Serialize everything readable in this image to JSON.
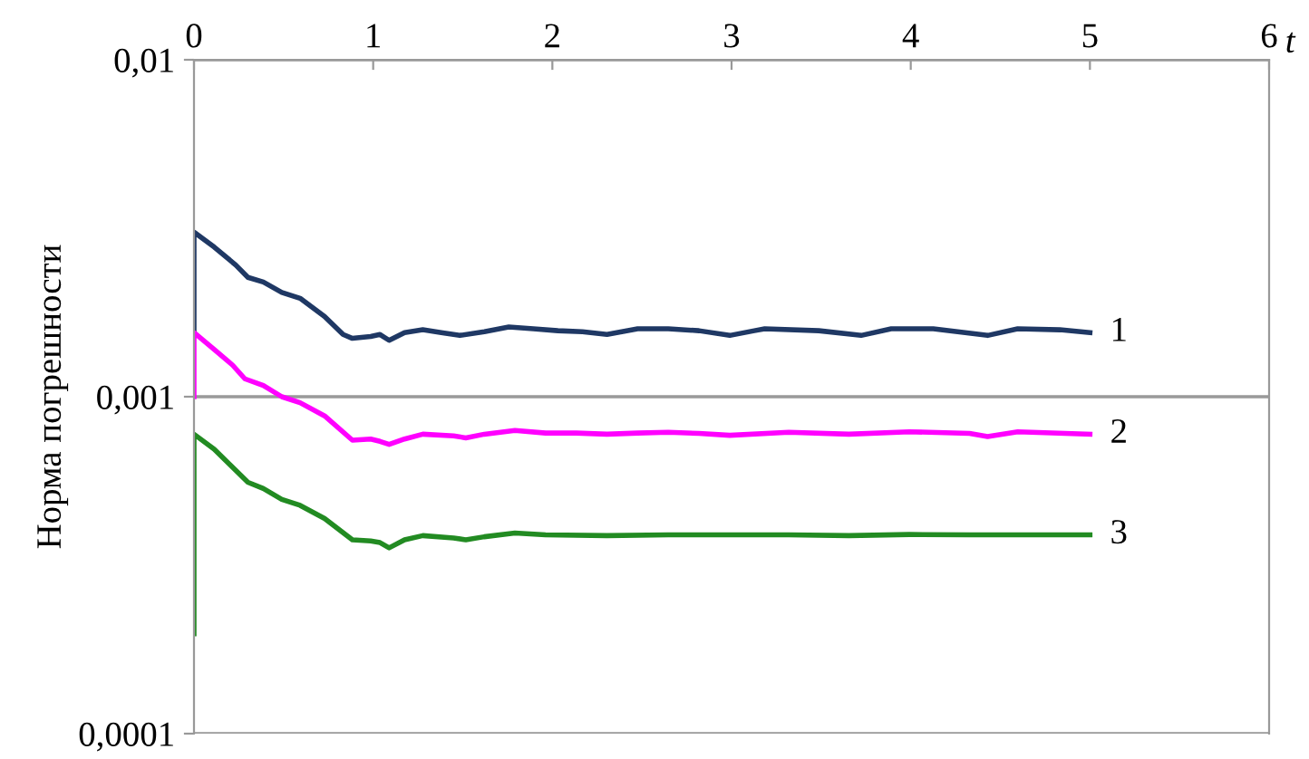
{
  "chart_data": {
    "type": "line",
    "ylabel": "Норма погрешности",
    "xlabel": "t",
    "log": "y",
    "grid": "y",
    "xlim": [
      0,
      6
    ],
    "xticks": [
      0,
      1,
      2,
      3,
      4,
      5,
      6
    ],
    "ylim": [
      0.0001,
      0.01
    ],
    "yticks": [
      {
        "value": 0.0001,
        "label": "0,0001"
      },
      {
        "value": 0.001,
        "label": "0,001"
      },
      {
        "value": 0.01,
        "label": "0,01"
      }
    ],
    "series": [
      {
        "name": "1",
        "color": "#1f3864",
        "x": [
          0,
          0,
          0.113,
          0.233,
          0.301,
          0.387,
          0.49,
          0.592,
          0.729,
          0.832,
          0.884,
          0.986,
          1.038,
          1.089,
          1.175,
          1.277,
          1.38,
          1.483,
          1.62,
          1.757,
          1.894,
          2.031,
          2.168,
          2.305,
          2.476,
          2.647,
          2.818,
          2.99,
          3.127,
          3.185,
          3.487,
          3.723,
          3.891,
          4.126,
          4.429,
          4.597,
          4.832,
          5.0
        ],
        "values": [
          0.00156,
          0.00308,
          0.00278,
          0.00246,
          0.00226,
          0.00219,
          0.00204,
          0.00196,
          0.00173,
          0.00153,
          0.00149,
          0.00151,
          0.00153,
          0.00147,
          0.00155,
          0.00158,
          0.00155,
          0.00152,
          0.00156,
          0.00161,
          0.00159,
          0.00157,
          0.00156,
          0.00153,
          0.00159,
          0.00159,
          0.00157,
          0.00152,
          0.00157,
          0.00159,
          0.00157,
          0.00152,
          0.00159,
          0.00159,
          0.00152,
          0.00159,
          0.00158,
          0.00155
        ]
      },
      {
        "name": "2",
        "color": "#ff00ff",
        "x": [
          0,
          0,
          0.113,
          0.216,
          0.284,
          0.387,
          0.49,
          0.592,
          0.729,
          0.884,
          0.986,
          1.038,
          1.089,
          1.175,
          1.277,
          1.449,
          1.517,
          1.62,
          1.791,
          1.962,
          2.134,
          2.305,
          2.476,
          2.647,
          2.818,
          2.99,
          3.319,
          3.655,
          3.992,
          4.328,
          4.429,
          4.597,
          5.0
        ],
        "values": [
          0.001,
          0.00155,
          0.00138,
          0.00124,
          0.00113,
          0.00108,
          0.001,
          0.00096,
          0.000877,
          0.000743,
          0.000749,
          0.000737,
          0.000722,
          0.000749,
          0.000774,
          0.000765,
          0.000755,
          0.000774,
          0.000794,
          0.00078,
          0.00078,
          0.000774,
          0.00078,
          0.000784,
          0.000778,
          0.000768,
          0.000784,
          0.000774,
          0.000787,
          0.000778,
          0.000762,
          0.000787,
          0.000774
        ]
      },
      {
        "name": "3",
        "color": "#228b22",
        "x": [
          0,
          0,
          0.113,
          0.216,
          0.301,
          0.387,
          0.49,
          0.592,
          0.729,
          0.884,
          0.986,
          1.038,
          1.089,
          1.175,
          1.277,
          1.449,
          1.517,
          1.62,
          1.791,
          1.962,
          2.305,
          2.647,
          2.99,
          3.319,
          3.655,
          3.992,
          4.328,
          5.0
        ],
        "values": [
          0.000198,
          0.000774,
          0.000698,
          0.000617,
          0.000557,
          0.000534,
          0.000496,
          0.000476,
          0.000435,
          0.000376,
          0.000373,
          0.000369,
          0.000356,
          0.000376,
          0.000387,
          0.000381,
          0.000376,
          0.000384,
          0.000394,
          0.000389,
          0.000387,
          0.000389,
          0.000389,
          0.000389,
          0.000387,
          0.00039,
          0.000389,
          0.000389
        ]
      }
    ]
  }
}
